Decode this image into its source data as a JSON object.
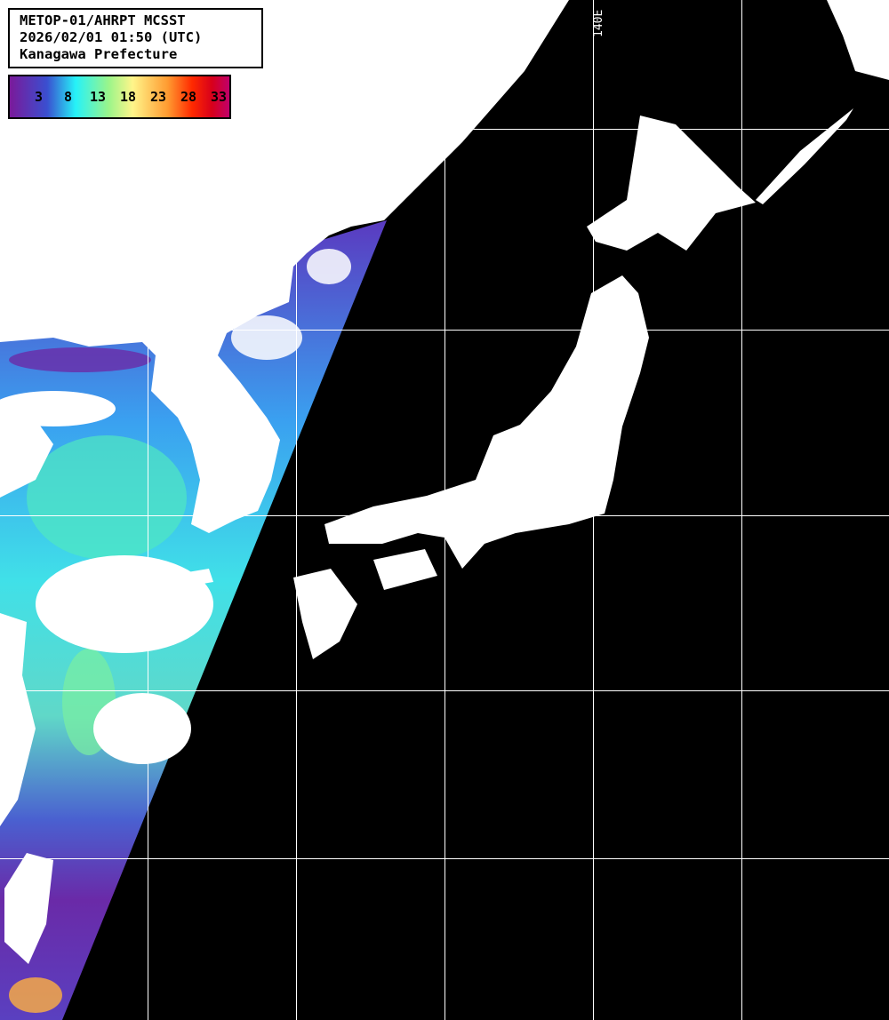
{
  "header": {
    "line1": "METOP-01/AHRPT MCSST",
    "line2": "2026/02/01 01:50 (UTC)",
    "line3": "Kanagawa Prefecture"
  },
  "legend": {
    "ticks": [
      "3",
      "8",
      "13",
      "18",
      "23",
      "28",
      "33"
    ],
    "colors": [
      "#7a1a9a",
      "#3a4fd0",
      "#26f2f8",
      "#9af58a",
      "#fff58a",
      "#ff9a30",
      "#ff2a00",
      "#c0006a"
    ]
  },
  "grid": {
    "longitude_label": "140E"
  },
  "colors": {
    "land": "#ffffff",
    "no_data": "#000000",
    "grid": "#ffffff"
  }
}
